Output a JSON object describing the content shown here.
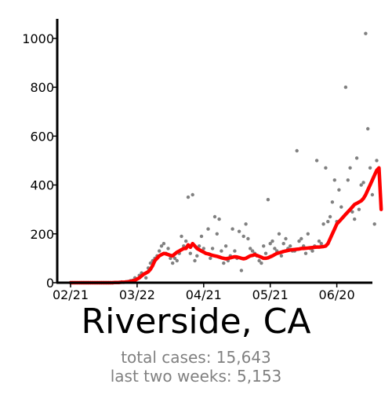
{
  "title": "Riverside, CA",
  "stats": {
    "total_cases": "total cases: 15,643",
    "last_two_weeks": "last two weeks: 5,153"
  },
  "colors": {
    "line": "#ff0000",
    "points": "#808080",
    "axis": "#000000"
  },
  "chart_data": {
    "type": "line",
    "title": "Riverside, CA",
    "xlabel": "",
    "ylabel": "",
    "x_tick_labels": [
      "02/21",
      "03/22",
      "04/21",
      "05/21",
      "06/20"
    ],
    "y_ticks": [
      0,
      200,
      400,
      600,
      800,
      1000
    ],
    "xlim": [
      "02/14",
      "07/01"
    ],
    "ylim": [
      0,
      1080
    ],
    "grid": false,
    "start_date": "2020-02-21",
    "series": [
      {
        "kind": "scatter",
        "values": [
          0,
          0,
          0,
          0,
          0,
          0,
          0,
          0,
          0,
          0,
          0,
          0,
          0,
          0,
          0,
          0,
          0,
          0,
          0,
          0,
          1,
          1,
          2,
          3,
          2,
          4,
          5,
          8,
          10,
          20,
          15,
          30,
          40,
          35,
          20,
          60,
          80,
          90,
          100,
          110,
          130,
          150,
          160,
          120,
          140,
          100,
          80,
          100,
          90,
          120,
          190,
          150,
          170,
          350,
          120,
          360,
          90,
          110,
          150,
          190,
          140,
          120,
          220,
          100,
          140,
          270,
          200,
          260,
          130,
          80,
          150,
          90,
          110,
          220,
          130,
          100,
          210,
          50,
          190,
          240,
          180,
          140,
          130,
          120,
          110,
          90,
          80,
          150,
          120,
          340,
          160,
          170,
          140,
          130,
          200,
          110,
          160,
          180,
          140,
          150,
          130,
          130,
          540,
          170,
          180,
          150,
          120,
          200,
          140,
          130,
          150,
          500,
          170,
          160,
          240,
          470,
          250,
          270,
          330,
          420,
          250,
          380,
          310,
          270,
          800,
          420,
          470,
          290,
          260,
          510,
          300,
          400,
          410,
          1020,
          630,
          470,
          360,
          240,
          500
        ]
      },
      {
        "kind": "line",
        "values": [
          0,
          0,
          0,
          0,
          0,
          0,
          0,
          0,
          0,
          0,
          0,
          0,
          0,
          0,
          0,
          0,
          0,
          0,
          0,
          0,
          1,
          1,
          1,
          2,
          2,
          3,
          4,
          5,
          7,
          10,
          15,
          20,
          28,
          35,
          40,
          45,
          55,
          70,
          90,
          100,
          110,
          115,
          120,
          118,
          115,
          112,
          110,
          118,
          125,
          130,
          135,
          140,
          140,
          155,
          145,
          160,
          150,
          140,
          135,
          130,
          125,
          120,
          118,
          115,
          112,
          110,
          108,
          105,
          102,
          100,
          98,
          100,
          102,
          104,
          106,
          105,
          103,
          100,
          98,
          100,
          105,
          110,
          112,
          115,
          112,
          108,
          104,
          100,
          100,
          102,
          106,
          110,
          115,
          120,
          122,
          125,
          128,
          130,
          132,
          134,
          135,
          136,
          137,
          138,
          140,
          140,
          141,
          142,
          143,
          144,
          145,
          146,
          146,
          147,
          148,
          150,
          160,
          180,
          200,
          220,
          240,
          250,
          260,
          270,
          280,
          290,
          300,
          310,
          320,
          325,
          330,
          335,
          345,
          360,
          380,
          400,
          420,
          440,
          460,
          470,
          300
        ]
      }
    ]
  }
}
